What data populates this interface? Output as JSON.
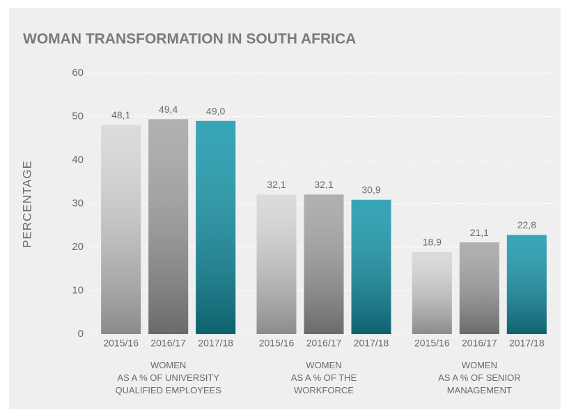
{
  "chart_data": {
    "type": "bar",
    "title": "WOMAN TRANSFORMATION IN SOUTH AFRICA",
    "y_label": "PERCENTAGE",
    "categories": [
      "WOMEN\nAS A % OF UNIVERSITY\nQUALIFIED EMPLOYEES",
      "WOMEN\nAS A % OF THE\nWORKFORCE",
      "WOMEN\nAS A % OF SENIOR\nMANAGEMENT"
    ],
    "series": [
      {
        "name": "2015/16",
        "color": "#d6d6d6",
        "values": [
          48.1,
          32.1,
          18.9
        ],
        "value_labels": [
          "48,1",
          "32,1",
          "18,9"
        ]
      },
      {
        "name": "2016/17",
        "color": "#a3a3a3",
        "values": [
          49.4,
          32.1,
          21.1
        ],
        "value_labels": [
          "49,4",
          "32,1",
          "21,1"
        ]
      },
      {
        "name": "2017/18",
        "color": "#1596aa",
        "values": [
          49.0,
          30.9,
          22.8
        ],
        "value_labels": [
          "49,0",
          "30,9",
          "22,8"
        ]
      }
    ],
    "ylim": [
      0,
      60
    ],
    "yticks": [
      0,
      10,
      20,
      30,
      40,
      50,
      60
    ],
    "grid": true
  }
}
